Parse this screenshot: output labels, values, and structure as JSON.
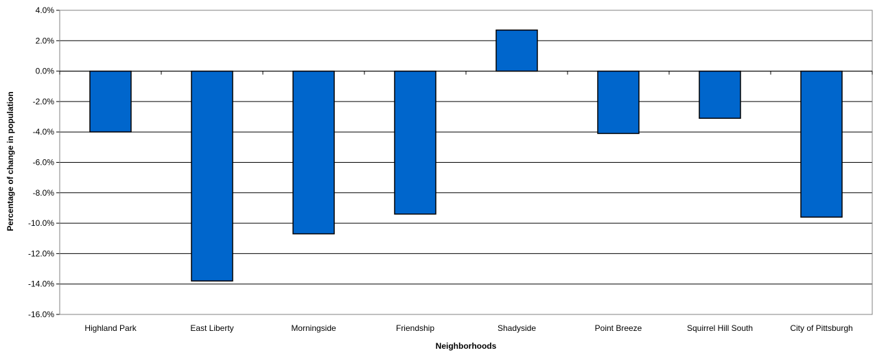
{
  "chart_data": {
    "type": "bar",
    "title": "",
    "xlabel": "Neighborhoods",
    "ylabel": "Percentage of change in population",
    "categories": [
      "Highland Park",
      "East Liberty",
      "Morningside",
      "Friendship",
      "Shadyside",
      "Point Breeze",
      "Squirrel Hill South",
      "City of Pittsburgh"
    ],
    "series": [
      {
        "values": [
          -4.0,
          -13.8,
          -10.7,
          -9.4,
          2.7,
          -4.1,
          -3.1,
          -9.6
        ]
      }
    ],
    "ylim": [
      -16.0,
      4.0
    ],
    "yticks": [
      4.0,
      2.0,
      0.0,
      -2.0,
      -4.0,
      -6.0,
      -8.0,
      -10.0,
      -12.0,
      -14.0,
      -16.0
    ],
    "ytick_labels": [
      "4.0%",
      "2.0%",
      "0.0%",
      "-2.0%",
      "-4.0%",
      "-6.0%",
      "-8.0%",
      "-10.0%",
      "-12.0%",
      "-14.0%",
      "-16.0%"
    ],
    "grid": true,
    "legend": "none",
    "colors": {
      "bar_fill": "#0066CC",
      "bar_stroke": "#000000",
      "grid": "#000000",
      "plot_border": "#808080"
    }
  }
}
